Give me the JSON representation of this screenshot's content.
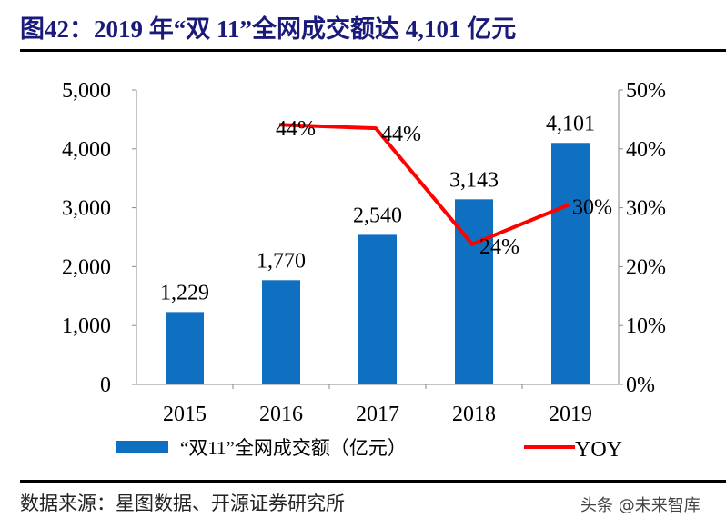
{
  "title": "图42：2019 年“双 11”全网成交额达 4,101 亿元",
  "source": "数据来源：星图数据、开源证券研究所",
  "watermark": "头条 @未来智库",
  "chart_data": {
    "type": "bar+line",
    "categories": [
      "2015",
      "2016",
      "2017",
      "2018",
      "2019"
    ],
    "series": [
      {
        "name": "“双11”全网成交额（亿元）",
        "type": "bar",
        "axis": "left",
        "color": "#0f6fc0",
        "values": [
          1229,
          1770,
          2540,
          3143,
          4101
        ],
        "labels": [
          "1,229",
          "1,770",
          "2,540",
          "3,143",
          "4,101"
        ]
      },
      {
        "name": "YOY",
        "type": "line",
        "axis": "right",
        "color": "#ff0000",
        "values": [
          null,
          44.1,
          43.5,
          23.8,
          30.5
        ],
        "labels": [
          null,
          "44%",
          "44%",
          "24%",
          "30%"
        ]
      }
    ],
    "left_axis": {
      "ylim": [
        0,
        5000
      ],
      "ticks": [
        "0",
        "1,000",
        "2,000",
        "3,000",
        "4,000",
        "5,000"
      ]
    },
    "right_axis": {
      "ylim": [
        0,
        50
      ],
      "ticks": [
        "0%",
        "10%",
        "20%",
        "30%",
        "40%",
        "50%"
      ]
    },
    "grid": false,
    "legend_placement": "bottom"
  }
}
